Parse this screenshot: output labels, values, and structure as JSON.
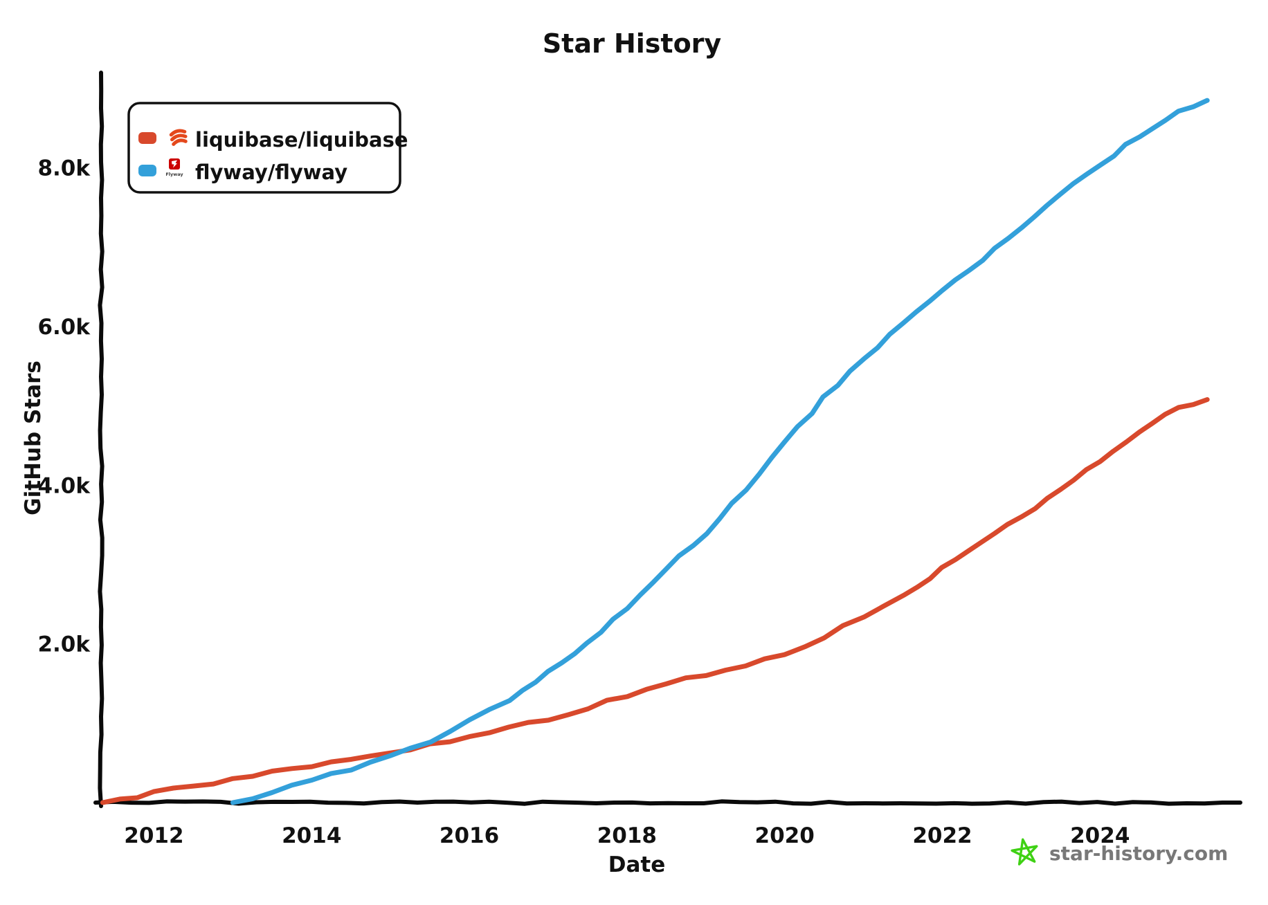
{
  "title": "Star History",
  "axes": {
    "x_label": "Date",
    "y_label": "GitHub Stars"
  },
  "legend": {
    "items": [
      {
        "label": "liquibase/liquibase",
        "color": "#D8492C",
        "icon": "liquibase-logo"
      },
      {
        "label": "flyway/flyway",
        "color": "#33A0DA",
        "icon": "flyway-logo"
      }
    ]
  },
  "watermark": {
    "text": "star-history.com",
    "star_color": "#3FD114",
    "text_color": "#787878"
  },
  "colors": {
    "liquibase_line": "#D8492C",
    "flyway_line": "#33A0DA",
    "axis": "#0a0a0a",
    "flyway_logo_red": "#CC0200",
    "liquibase_logo_orange": "#E4481C"
  },
  "chart_data": {
    "type": "line",
    "title": "Star History",
    "xlabel": "Date",
    "ylabel": "GitHub Stars",
    "grid": false,
    "legend_position": "top-left",
    "xlim": [
      2011.32,
      2025.78
    ],
    "ylim": [
      0,
      9200
    ],
    "x_ticks": [
      2012,
      2014,
      2016,
      2018,
      2020,
      2022,
      2024
    ],
    "y_ticks": [
      {
        "value": 2000,
        "label": "2.0k"
      },
      {
        "value": 4000,
        "label": "4.0k"
      },
      {
        "value": 6000,
        "label": "6.0k"
      },
      {
        "value": 8000,
        "label": "8.0k"
      }
    ],
    "series": [
      {
        "name": "liquibase/liquibase",
        "color": "#D8492C",
        "points": [
          [
            2011.35,
            0
          ],
          [
            2012,
            120
          ],
          [
            2012.5,
            210
          ],
          [
            2013,
            300
          ],
          [
            2013.5,
            390
          ],
          [
            2014,
            460
          ],
          [
            2014.5,
            545
          ],
          [
            2015,
            630
          ],
          [
            2015.5,
            730
          ],
          [
            2016,
            840
          ],
          [
            2016.5,
            950
          ],
          [
            2017,
            1050
          ],
          [
            2017.5,
            1200
          ],
          [
            2018,
            1350
          ],
          [
            2018.5,
            1490
          ],
          [
            2019,
            1620
          ],
          [
            2019.5,
            1740
          ],
          [
            2020,
            1860
          ],
          [
            2020.5,
            2080
          ],
          [
            2021,
            2350
          ],
          [
            2021.5,
            2620
          ],
          [
            2022,
            2950
          ],
          [
            2022.5,
            3280
          ],
          [
            2023,
            3600
          ],
          [
            2023.5,
            3950
          ],
          [
            2024,
            4300
          ],
          [
            2024.5,
            4680
          ],
          [
            2025,
            4980
          ],
          [
            2025.36,
            5080
          ]
        ]
      },
      {
        "name": "flyway/flyway",
        "color": "#33A0DA",
        "points": [
          [
            2013.0,
            0
          ],
          [
            2013.5,
            120
          ],
          [
            2014,
            300
          ],
          [
            2014.5,
            420
          ],
          [
            2015,
            580
          ],
          [
            2015.5,
            780
          ],
          [
            2016,
            1050
          ],
          [
            2016.5,
            1300
          ],
          [
            2017,
            1650
          ],
          [
            2017.5,
            2000
          ],
          [
            2018,
            2450
          ],
          [
            2018.5,
            2950
          ],
          [
            2019,
            3400
          ],
          [
            2019.5,
            3950
          ],
          [
            2020,
            4550
          ],
          [
            2020.5,
            5100
          ],
          [
            2021,
            5600
          ],
          [
            2021.5,
            6050
          ],
          [
            2022,
            6450
          ],
          [
            2022.5,
            6850
          ],
          [
            2023,
            7250
          ],
          [
            2023.5,
            7650
          ],
          [
            2024,
            8050
          ],
          [
            2024.5,
            8400
          ],
          [
            2025,
            8700
          ],
          [
            2025.36,
            8850
          ]
        ]
      }
    ]
  }
}
